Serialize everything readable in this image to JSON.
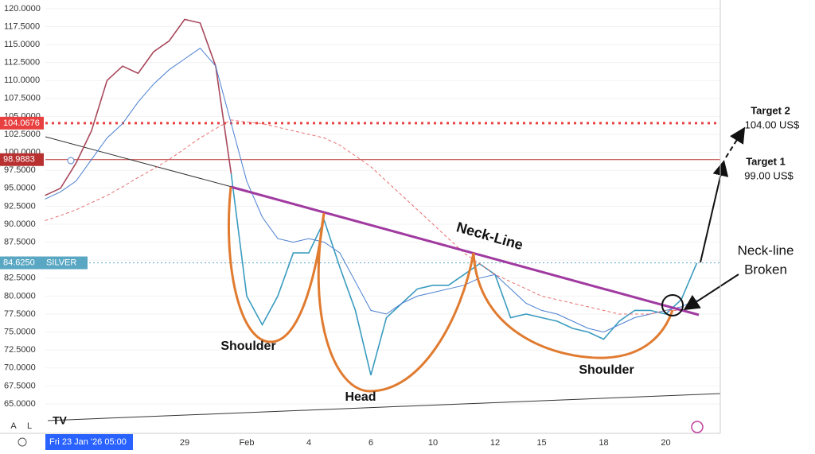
{
  "chart_data": {
    "type": "line",
    "symbol": "SILVER",
    "cursor_label": "Fri 23 Jan '26  05:00",
    "categories": [
      null,
      null,
      null,
      null,
      null,
      null,
      null,
      null,
      null,
      "29",
      null,
      null,
      null,
      "Feb",
      null,
      null,
      null,
      "4",
      null,
      null,
      null,
      "6",
      null,
      null,
      null,
      "10",
      null,
      null,
      null,
      "12",
      null,
      null,
      "15",
      null,
      null,
      null,
      "18",
      null,
      null,
      null,
      "20",
      null,
      null
    ],
    "series": [
      {
        "color": "#a8485c",
        "width": 1.6,
        "dash": false,
        "values": [
          94,
          95,
          98.5,
          103,
          110,
          112,
          111,
          114,
          115.5,
          118.5,
          118,
          112,
          97,
          null,
          null,
          null,
          null,
          null,
          null,
          null,
          null,
          null,
          null,
          null,
          null,
          null,
          null,
          null,
          null,
          null,
          null,
          null,
          null,
          null,
          null,
          null,
          null,
          null,
          null,
          null,
          null,
          null,
          null
        ]
      },
      {
        "color": "#3a9bbf",
        "width": 1.6,
        "dash": false,
        "values": [
          null,
          null,
          null,
          null,
          null,
          null,
          null,
          null,
          null,
          null,
          null,
          null,
          97,
          80,
          76,
          80,
          86,
          86,
          90.5,
          84,
          78,
          69,
          77,
          79,
          81,
          81.5,
          81.5,
          83,
          84.5,
          83,
          77,
          77.5,
          77,
          76.5,
          75.5,
          75,
          74,
          76.5,
          78,
          78,
          77.5,
          79.5,
          84.6
        ]
      },
      {
        "color": "#4a7fd0",
        "width": 1,
        "dash": false,
        "values": [
          93.5,
          94.5,
          96,
          99,
          102,
          104,
          107,
          109.5,
          111.5,
          113,
          114.5,
          112,
          104,
          96,
          91,
          88,
          87.5,
          88,
          87.5,
          86,
          82,
          78,
          77.5,
          79,
          80,
          80.5,
          81,
          81.5,
          82.5,
          83,
          81,
          79,
          78,
          77.5,
          76.5,
          75.5,
          75,
          76,
          77,
          77.5,
          78,
          78.5,
          79.5
        ]
      },
      {
        "color": "#e87070",
        "width": 1,
        "dash": true,
        "values": [
          90.5,
          91.2,
          92,
          93,
          94,
          95.2,
          96.5,
          97.7,
          99,
          100.5,
          102,
          103.3,
          104.5,
          104.2,
          104,
          103.5,
          103,
          102.5,
          102,
          101,
          99.5,
          98,
          96,
          94,
          92,
          90,
          88,
          86,
          84.5,
          83,
          82,
          81,
          80,
          79.5,
          79,
          78.5,
          78,
          77.5,
          77.5,
          77.5,
          78,
          78,
          78.5
        ]
      }
    ],
    "hlines": [
      {
        "value": 104.0676,
        "color": "#e84040",
        "style": "dotted"
      },
      {
        "value": 98.9883,
        "color": "#b83030",
        "style": "solid"
      },
      {
        "value": {
          "value": 84.625,
          "label": "84.6250"
        },
        "color": "#5aa7c3",
        "style": "dotted"
      }
    ],
    "ylim": [
      60.9,
      121.2
    ],
    "yticks": [
      {
        "value": 65,
        "label": "65.0000"
      },
      {
        "value": 67.5,
        "label": "67.5000"
      },
      {
        "value": 70,
        "label": "70.0000"
      },
      {
        "value": 72.5,
        "label": "72.5000"
      },
      {
        "value": 75,
        "label": "75.0000"
      },
      {
        "value": 77.5,
        "label": "77.5000"
      },
      {
        "value": 80,
        "label": "80.0000"
      },
      {
        "value": 82.5,
        "label": "82.5000"
      },
      {
        "value": 85,
        "label": "85.0000"
      },
      {
        "value": 87.5,
        "label": "87.5000"
      },
      {
        "value": 90,
        "label": "90.0000"
      },
      {
        "value": 92.5,
        "label": "92.5000"
      },
      {
        "value": 95,
        "label": "95.0000"
      },
      {
        "value": 97.5,
        "label": "97.5000"
      },
      {
        "value": 100,
        "label": "100.0000"
      },
      {
        "value": 102.5,
        "label": "102.5000"
      },
      {
        "value": 105,
        "label": "105.0000"
      },
      {
        "value": 107.5,
        "label": "107.5000"
      },
      {
        "value": 110,
        "label": "110.0000"
      },
      {
        "value": 112.5,
        "label": "112.5000"
      },
      {
        "value": 115,
        "label": "115.0000"
      },
      {
        "value": 117.5,
        "label": "117.5000"
      },
      {
        "value": 120,
        "label": "120.0000"
      }
    ],
    "annotations": {
      "left_shoulder": "Shoulder",
      "head": "Head",
      "right_shoulder": "Shoulder",
      "neckline": "Neck-Line",
      "target2_title": "Target 2",
      "target2_value": "104.00 US$",
      "target1_title": "Target 1",
      "target1_value": "99.00 US$",
      "broken_line1": "Neck-line",
      "broken_line2": "Broken"
    },
    "ui": {
      "auto_button": "A",
      "log_button": "L"
    }
  }
}
